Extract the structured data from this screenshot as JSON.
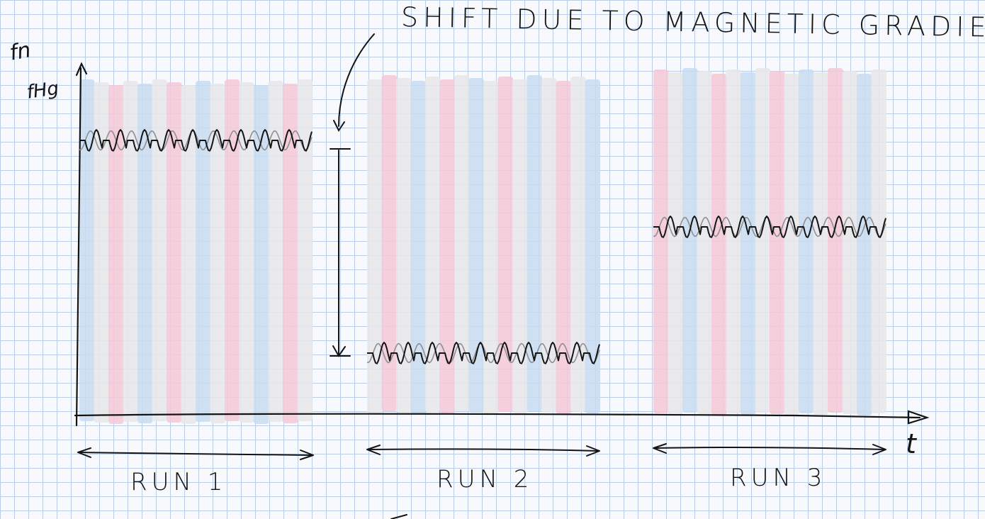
{
  "annotation": "SHIFT DUE TO MAGNETIC GRADIENT",
  "axes": {
    "y_label_numerator": "fn",
    "y_label_denominator": "fHg",
    "x_label": "t"
  },
  "runs": [
    {
      "label": "RUN 1",
      "level": "high"
    },
    {
      "label": "RUN 2",
      "level": "low"
    },
    {
      "label": "RUN 3",
      "level": "middle"
    }
  ],
  "colors": {
    "ink": "#141414",
    "stripe_blue": "#c8dcf0",
    "stripe_pink": "#f4c8d6",
    "stripe_gray": "#e7e7e9",
    "grid": "#b9cde6"
  }
}
